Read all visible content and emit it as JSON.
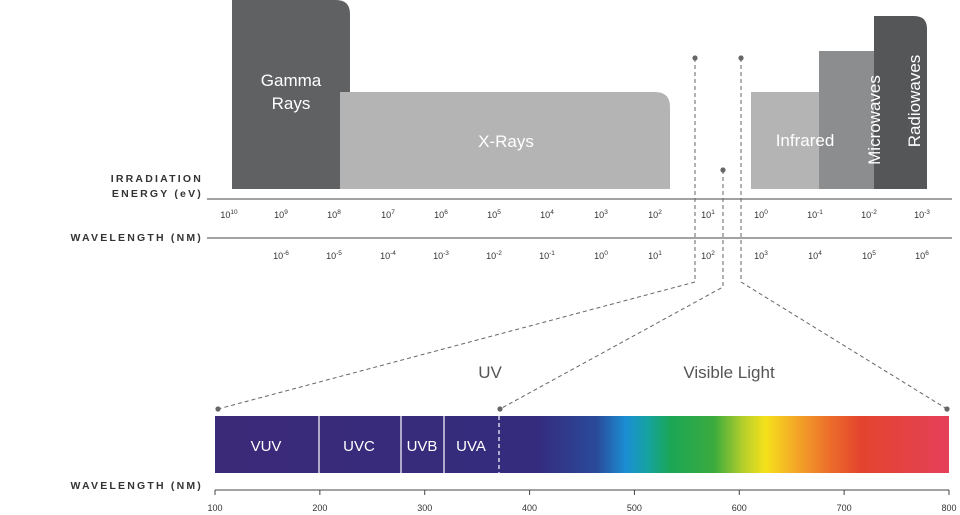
{
  "bands": [
    {
      "label": "Gamma Rays"
    },
    {
      "label": "X-Rays"
    },
    {
      "label": "Infrared"
    },
    {
      "label": "Microwaves"
    },
    {
      "label": "Radiowaves"
    }
  ],
  "energy_axis": {
    "title_lines": [
      "IRRADIATION",
      "ENERGY (eV)"
    ],
    "ticks": [
      {
        "base": "10",
        "exp": "10"
      },
      {
        "base": "10",
        "exp": "9"
      },
      {
        "base": "10",
        "exp": "8"
      },
      {
        "base": "10",
        "exp": "7"
      },
      {
        "base": "10",
        "exp": "6"
      },
      {
        "base": "10",
        "exp": "5"
      },
      {
        "base": "10",
        "exp": "4"
      },
      {
        "base": "10",
        "exp": "3"
      },
      {
        "base": "10",
        "exp": "2"
      },
      {
        "base": "10",
        "exp": "1"
      },
      {
        "base": "10",
        "exp": "0"
      },
      {
        "base": "10",
        "exp": "-1"
      },
      {
        "base": "10",
        "exp": "-2"
      },
      {
        "base": "10",
        "exp": "-3"
      }
    ]
  },
  "wavelength_axis": {
    "title": "WAVELENGTH (NM)",
    "ticks": [
      {
        "base": "10",
        "exp": "-6"
      },
      {
        "base": "10",
        "exp": "-5"
      },
      {
        "base": "10",
        "exp": "-4"
      },
      {
        "base": "10",
        "exp": "-3"
      },
      {
        "base": "10",
        "exp": "-2"
      },
      {
        "base": "10",
        "exp": "-1"
      },
      {
        "base": "10",
        "exp": "0"
      },
      {
        "base": "10",
        "exp": "1"
      },
      {
        "base": "10",
        "exp": "2"
      },
      {
        "base": "10",
        "exp": "3"
      },
      {
        "base": "10",
        "exp": "4"
      },
      {
        "base": "10",
        "exp": "5"
      },
      {
        "base": "10",
        "exp": "6"
      }
    ]
  },
  "regions": [
    "UV",
    "Visible Light"
  ],
  "segments": [
    "VUV",
    "UVC",
    "UVB",
    "UVA"
  ],
  "detail_axis": {
    "title": "WAVELENGTH (NM)",
    "xlim": [
      100,
      800
    ],
    "xticks": [
      100,
      200,
      300,
      400,
      500,
      600,
      700,
      800
    ]
  }
}
